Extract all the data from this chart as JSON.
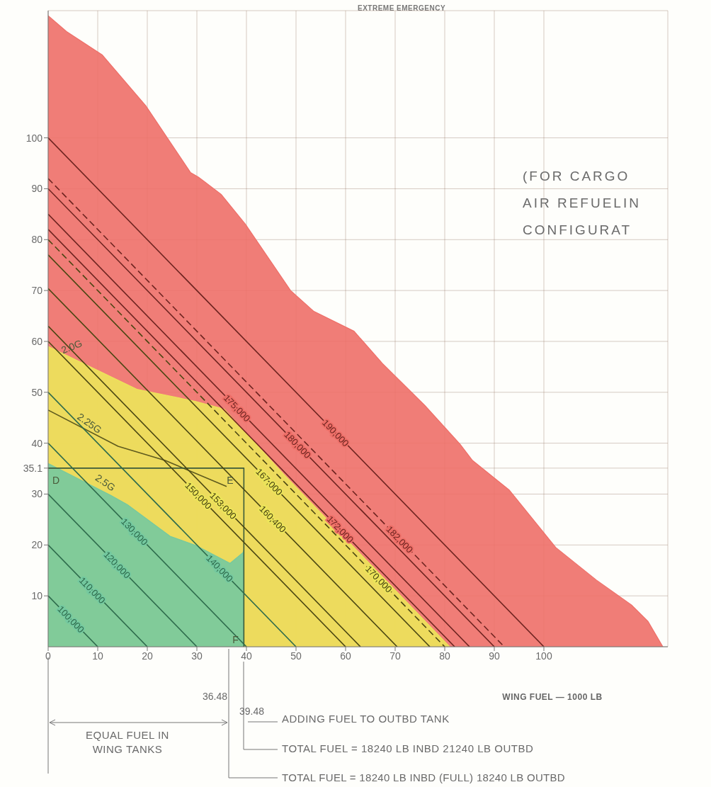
{
  "chart_data": {
    "type": "line",
    "title": "EXTREME EMERGENCY",
    "xlabel": "WING FUEL — 1000 LB",
    "xlim": [
      0,
      125
    ],
    "ylim": [
      0,
      125
    ],
    "xticks": [
      0,
      10,
      20,
      30,
      40,
      50,
      60,
      70,
      80,
      90,
      100
    ],
    "yticks": [
      10,
      20,
      30,
      35.1,
      40,
      50,
      60,
      70,
      80,
      90,
      100
    ],
    "grid": true,
    "series": [
      {
        "type": "area",
        "color": "#ee6f68",
        "x": [
          0,
          3.7,
          10.9,
          19.7,
          28.7,
          30.3,
          34.9,
          39.8,
          48.9,
          53.6,
          61.7,
          67.4,
          76,
          83.1,
          85.6,
          93,
          102.4,
          110.6,
          117.7,
          121,
          124
        ],
        "values": [
          124,
          120.9,
          116.3,
          106.3,
          93.2,
          92.3,
          88.9,
          83,
          70,
          65.9,
          62,
          55.7,
          47.4,
          39.8,
          36.6,
          30.8,
          19.5,
          13.1,
          8.2,
          5,
          0
        ]
      },
      {
        "type": "area",
        "color": "#ece55a",
        "x": [
          0,
          7,
          17.9,
          29.8,
          35.5,
          47.4,
          81
        ],
        "values": [
          59,
          55.7,
          50.6,
          48.2,
          46.7,
          34,
          0
        ]
      },
      {
        "type": "area",
        "color": "#74c9a0",
        "x": [
          0,
          12.7,
          16,
          24.6,
          29.8,
          36.7,
          39.3,
          39.48,
          39.48
        ],
        "values": [
          36,
          29.7,
          27.9,
          21.7,
          19.9,
          16.4,
          18.5,
          19,
          0
        ]
      },
      {
        "type": "line",
        "color": "#5e5a1e",
        "x": [
          0,
          14.1,
          23.6,
          36
        ],
        "values": [
          46.5,
          39.4,
          36.6,
          31.5
        ]
      },
      {
        "type": "line",
        "color": "#3a5a3a",
        "x": [
          0,
          39.48,
          39.48
        ],
        "values": [
          35.1,
          35.1,
          0
        ]
      },
      {
        "name": "100,000",
        "color": "#2e6b4c",
        "x": [
          0,
          10
        ],
        "values": [
          10,
          0
        ]
      },
      {
        "name": "110,000",
        "color": "#2e6b4c",
        "x": [
          0,
          20
        ],
        "values": [
          20,
          0
        ]
      },
      {
        "name": "120,000",
        "color": "#2e6b4c",
        "x": [
          0,
          30
        ],
        "values": [
          30,
          0
        ]
      },
      {
        "name": "130,000",
        "color": "#2e6b4c",
        "x": [
          0,
          40
        ],
        "values": [
          40,
          0
        ]
      },
      {
        "name": "140,000",
        "color": "#2e6b4c",
        "x": [
          0,
          50
        ],
        "values": [
          50,
          0
        ]
      },
      {
        "name": "150,000",
        "color": "#4a4612",
        "x": [
          0,
          60
        ],
        "values": [
          60,
          0
        ]
      },
      {
        "name": "153,000",
        "color": "#4a4612",
        "x": [
          0,
          63
        ],
        "values": [
          63,
          0
        ]
      },
      {
        "name": "160,400",
        "color": "#4a4612",
        "x": [
          0,
          70.4
        ],
        "values": [
          70.4,
          0
        ]
      },
      {
        "name": "167,000",
        "color": "#4a4612",
        "x": [
          0,
          77
        ],
        "values": [
          77,
          0
        ]
      },
      {
        "name": "170,000",
        "color": "#4a4612",
        "line_style": "dashed",
        "x": [
          0,
          80
        ],
        "values": [
          80,
          0
        ]
      },
      {
        "name": "172,000",
        "color": "#6e2420",
        "x": [
          0,
          82
        ],
        "values": [
          82,
          0
        ]
      },
      {
        "name": "175,000",
        "color": "#6e2420",
        "x": [
          0,
          85
        ],
        "values": [
          85,
          0
        ]
      },
      {
        "name": "180,000",
        "color": "#6e2420",
        "x": [
          0,
          90
        ],
        "values": [
          90,
          0
        ]
      },
      {
        "name": "182,000",
        "color": "#6e2420",
        "line_style": "dashed",
        "x": [
          0,
          92
        ],
        "values": [
          92,
          0
        ]
      },
      {
        "name": "190,000",
        "color": "#6e2420",
        "x": [
          0,
          100
        ],
        "values": [
          100,
          0
        ]
      }
    ],
    "annotations": [
      {
        "text": "2.0G",
        "x": 3,
        "y": 57
      },
      {
        "text": "2.25G",
        "x": 5.7,
        "y": 44.6
      },
      "2.5G",
      {
        "text": "D",
        "x": 0,
        "y": 35.1
      },
      {
        "text": "E",
        "x": 39.48,
        "y": 35.1
      },
      {
        "text": "F",
        "x": 39.48,
        "y": 0
      },
      "(FOR CARGO\nAIR REFUELIN\nCONFIGURAT",
      "36.48",
      "39.48",
      "EQUAL FUEL IN\nWING TANKS",
      "ADDING FUEL TO OUTBD TANK",
      "TOTAL FUEL = 18240 LB INBD 21240 LB OUTBD",
      "TOTAL FUEL = 18240 LB INBD (FULL) 18240 LB OUTBD"
    ]
  }
}
